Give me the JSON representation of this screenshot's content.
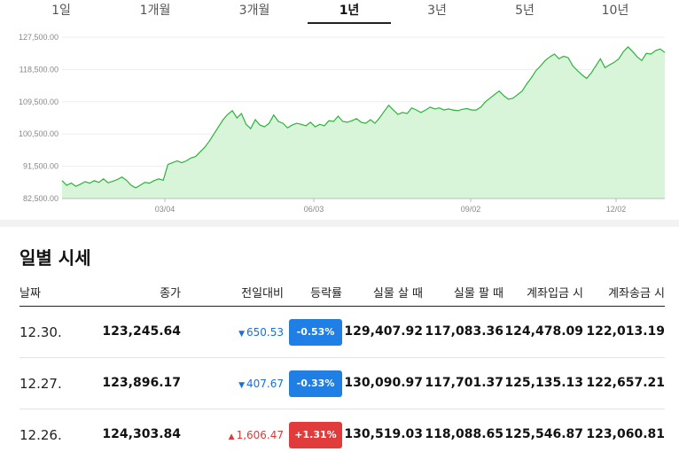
{
  "tabs": [
    {
      "label": "1일",
      "active": false
    },
    {
      "label": "1개월",
      "active": false
    },
    {
      "label": "3개월",
      "active": false
    },
    {
      "label": "1년",
      "active": true
    },
    {
      "label": "3년",
      "active": false
    },
    {
      "label": "5년",
      "active": false
    },
    {
      "label": "10년",
      "active": false
    }
  ],
  "chart_data": {
    "type": "area",
    "color": "#2bb33a",
    "fill": "#d9f5d9",
    "ylim": [
      82500,
      127500
    ],
    "yticks": [
      "127,500.00",
      "118,500.00",
      "109,500.00",
      "100,500.00",
      "91,500.00",
      "82,500.00"
    ],
    "xticks": [
      "03/04",
      "06/03",
      "09/02",
      "12/02"
    ],
    "values": [
      87500,
      86200,
      86800,
      85900,
      86500,
      87200,
      86800,
      87500,
      87000,
      88000,
      86900,
      87300,
      87800,
      88500,
      87600,
      86200,
      85500,
      86200,
      87000,
      86800,
      87500,
      88000,
      87600,
      92000,
      92500,
      93000,
      92500,
      93000,
      93800,
      94200,
      95500,
      96800,
      98500,
      100500,
      102500,
      104500,
      106000,
      107000,
      105000,
      106200,
      103200,
      102000,
      104500,
      103000,
      102500,
      103500,
      105800,
      104000,
      103500,
      102200,
      103000,
      103500,
      103200,
      102800,
      103800,
      102500,
      103200,
      102800,
      104200,
      104000,
      105500,
      104000,
      103800,
      104200,
      104800,
      103800,
      103500,
      104500,
      103500,
      105000,
      106800,
      108500,
      107200,
      106000,
      106500,
      106200,
      107800,
      107200,
      106500,
      107200,
      108000,
      107500,
      107800,
      107200,
      107500,
      107200,
      107000,
      107400,
      107600,
      107200,
      107200,
      108000,
      109500,
      110500,
      111500,
      112500,
      111200,
      110200,
      110500,
      111500,
      112500,
      114500,
      116200,
      118200,
      119500,
      121000,
      122000,
      122800,
      121500,
      122200,
      121800,
      119500,
      118200,
      117000,
      116000,
      117500,
      119500,
      121500,
      119000,
      119800,
      120500,
      121500,
      123500,
      124800,
      123500,
      122000,
      121000,
      123000,
      122800,
      123800,
      124200,
      123245
    ]
  },
  "section_title": "일별 시세",
  "table": {
    "headers": [
      "날짜",
      "종가",
      "전일대비",
      "등락률",
      "실물 살 때",
      "실물 팔 때",
      "계좌입금 시",
      "계좌송금 시"
    ],
    "rows": [
      {
        "date": "12.30.",
        "close": "123,245.64",
        "change": "650.53",
        "direction": "down",
        "rate": "-0.53%",
        "buy": "129,407.92",
        "sell": "117,083.36",
        "deposit": "124,478.09",
        "remit": "122,013.19"
      },
      {
        "date": "12.27.",
        "close": "123,896.17",
        "change": "407.67",
        "direction": "down",
        "rate": "-0.33%",
        "buy": "130,090.97",
        "sell": "117,701.37",
        "deposit": "125,135.13",
        "remit": "122,657.21"
      },
      {
        "date": "12.26.",
        "close": "124,303.84",
        "change": "1,606.47",
        "direction": "up",
        "rate": "+1.31%",
        "buy": "130,519.03",
        "sell": "118,088.65",
        "deposit": "125,546.87",
        "remit": "123,060.81"
      }
    ]
  }
}
